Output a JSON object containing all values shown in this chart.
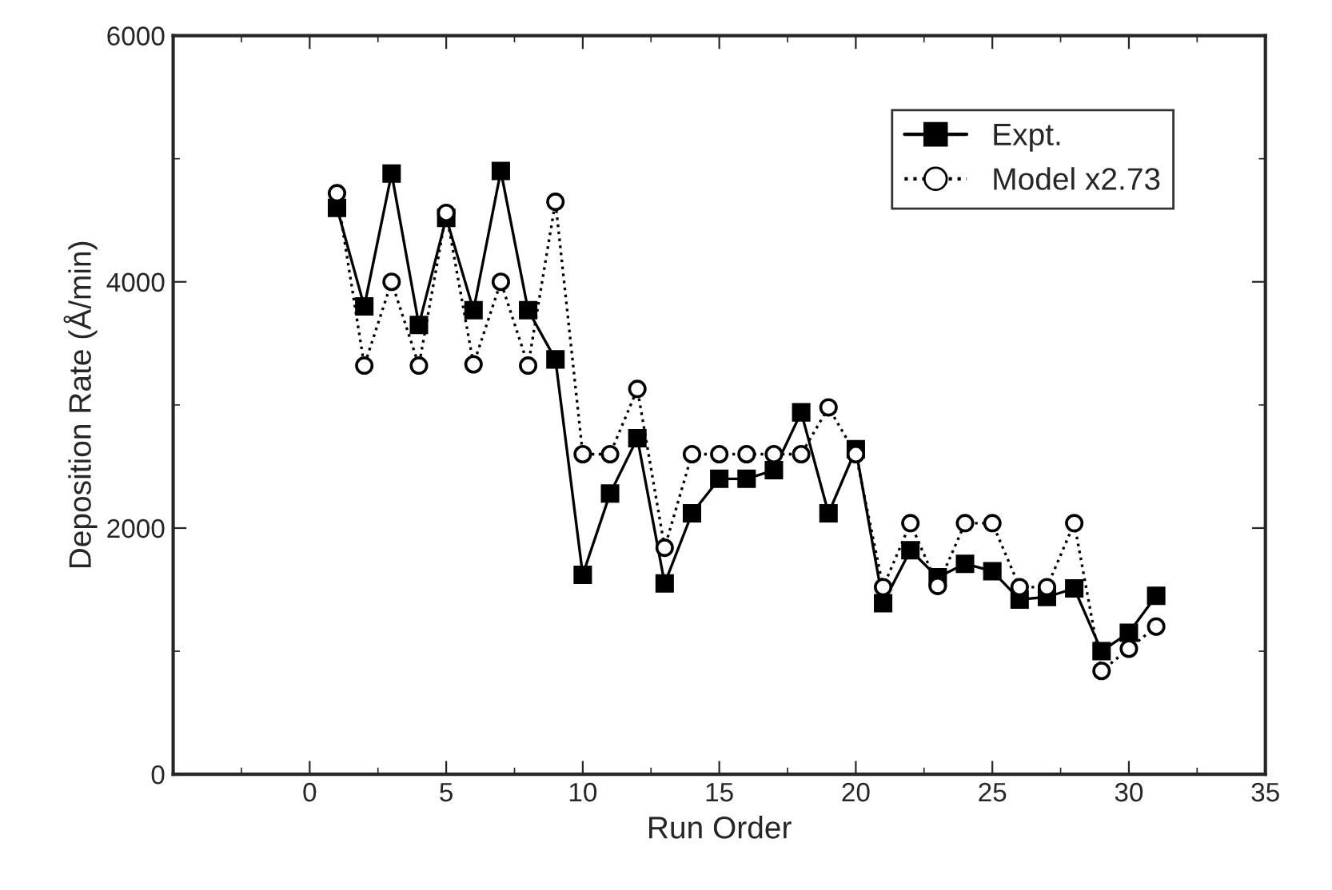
{
  "chart_data": {
    "type": "line",
    "xlabel": "Run Order",
    "ylabel": "Deposition Rate (Å/min)",
    "x": [
      1,
      2,
      3,
      4,
      5,
      6,
      7,
      8,
      9,
      10,
      11,
      12,
      13,
      14,
      15,
      16,
      17,
      18,
      19,
      20,
      21,
      22,
      23,
      24,
      25,
      26,
      27,
      28,
      29,
      30,
      31
    ],
    "series": [
      {
        "name": "Expt.",
        "color": "#000000",
        "marker": "square",
        "line_style": "solid",
        "values": [
          4600,
          3800,
          4880,
          3650,
          4520,
          3770,
          4900,
          3770,
          3370,
          1620,
          2280,
          2730,
          1550,
          2120,
          2400,
          2400,
          2470,
          2940,
          2120,
          2640,
          1390,
          1820,
          1600,
          1710,
          1650,
          1420,
          1440,
          1510,
          1000,
          1150,
          1450
        ]
      },
      {
        "name": "Model x2.73",
        "color": "#000000",
        "marker": "circle",
        "line_style": "dotted",
        "values": [
          4720,
          3320,
          4000,
          3320,
          4560,
          3330,
          4000,
          3320,
          4650,
          2600,
          2600,
          3130,
          1840,
          2600,
          2600,
          2600,
          2600,
          2600,
          2980,
          2600,
          1520,
          2040,
          1530,
          2040,
          2040,
          1520,
          1520,
          2040,
          840,
          1020,
          1200
        ]
      }
    ],
    "xlim": [
      -5,
      35
    ],
    "xticks": [
      0,
      5,
      10,
      15,
      20,
      25,
      30,
      35
    ],
    "ylim": [
      0,
      6000
    ],
    "yticks": [
      0,
      2000,
      4000,
      6000
    ],
    "grid": false,
    "legend": "top right"
  }
}
